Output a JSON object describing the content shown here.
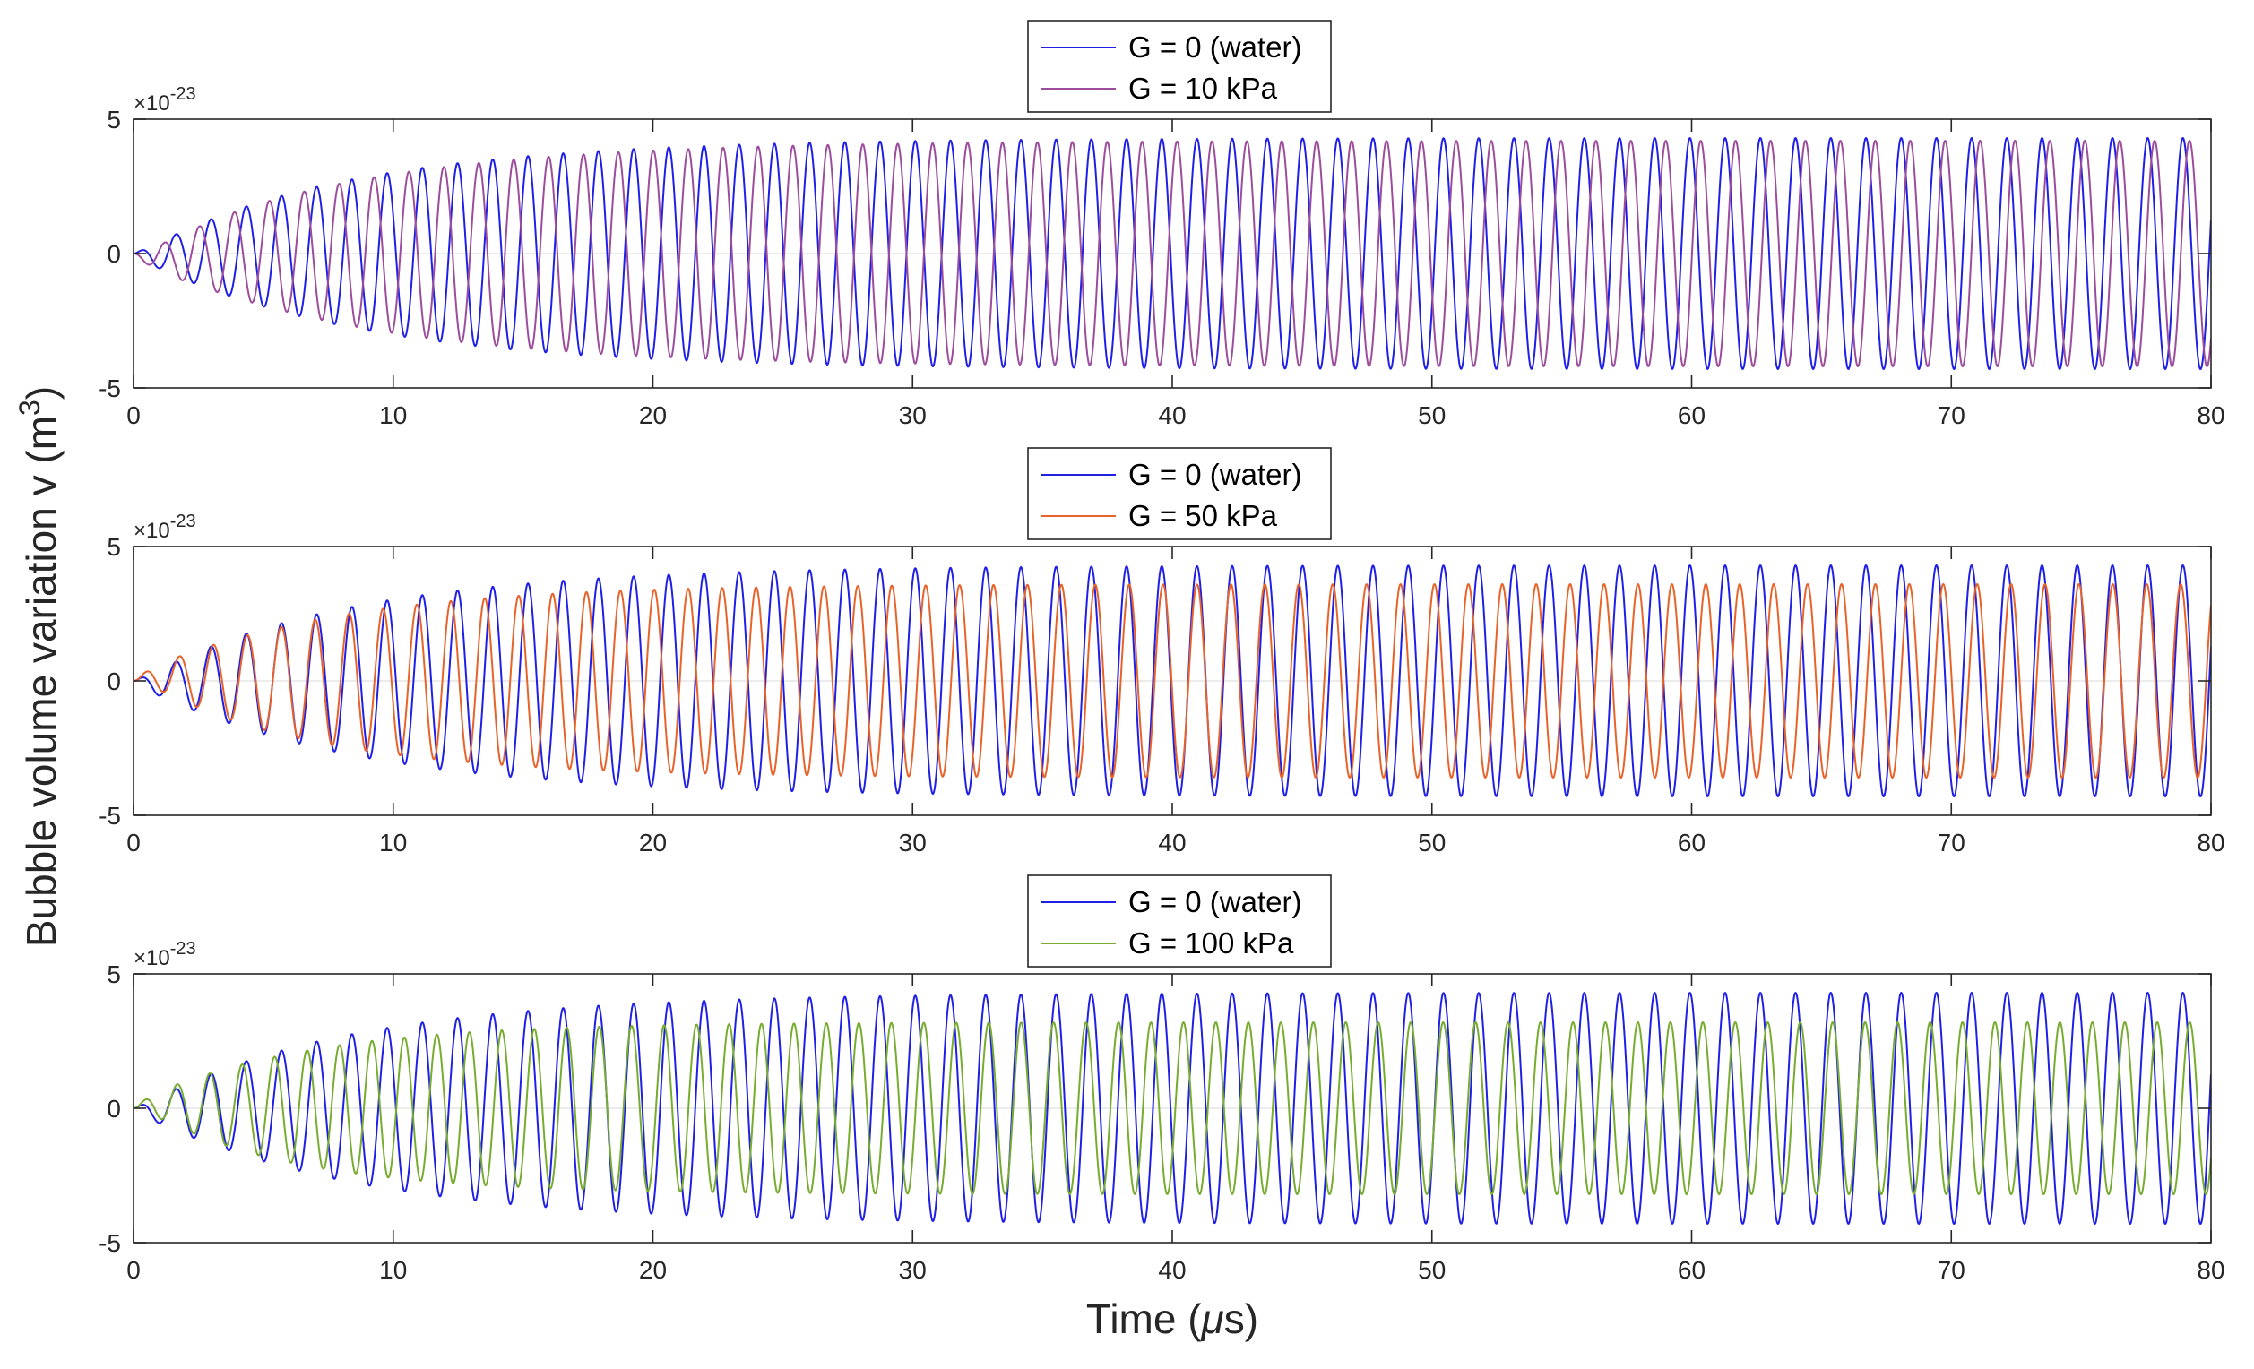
{
  "figure": {
    "ylabel": "Bubble volume variation v (m",
    "ylabel_sup": "3",
    "ylabel_tail": ")",
    "xlabel_pre": "Time (",
    "xlabel_mu": "μ",
    "xlabel_post": "s)"
  },
  "chart_data": [
    {
      "type": "line",
      "title": "",
      "xlabel": "Time (μs)",
      "ylabel": "Bubble volume variation v (m^3)",
      "xlim": [
        0,
        80
      ],
      "ylim": [
        -5,
        5
      ],
      "y_exponent": "×10^-23",
      "exponent_base": "×10",
      "exponent_power": "-23",
      "xticks": [
        "0",
        "10",
        "20",
        "30",
        "40",
        "50",
        "60",
        "70",
        "80"
      ],
      "yticks": [
        "-5",
        "0",
        "5"
      ],
      "legend_position": "top-center",
      "grid": false,
      "series": [
        {
          "name": "G = 0 (water)",
          "color": "#1f1fe6",
          "amplitude": 4.3,
          "frequency_per_us": 0.7375,
          "rise_time_us": 8.2,
          "phase_at_80us": 0.3
        },
        {
          "name": "G = 10 kPa",
          "color": "#9c4d9c",
          "amplitude": 4.2,
          "frequency_per_us": 0.7438,
          "rise_time_us": 8.2,
          "phase_at_80us": -0.85
        }
      ]
    },
    {
      "type": "line",
      "title": "",
      "xlabel": "Time (μs)",
      "ylabel": "Bubble volume variation v (m^3)",
      "xlim": [
        0,
        80
      ],
      "ylim": [
        -5,
        5
      ],
      "y_exponent": "×10^-23",
      "exponent_base": "×10",
      "exponent_power": "-23",
      "xticks": [
        "0",
        "10",
        "20",
        "30",
        "40",
        "50",
        "60",
        "70",
        "80"
      ],
      "yticks": [
        "-5",
        "0",
        "5"
      ],
      "legend_position": "top-center",
      "grid": false,
      "series": [
        {
          "name": "G = 0 (water)",
          "color": "#1f1fe6",
          "amplitude": 4.3,
          "frequency_per_us": 0.7375,
          "rise_time_us": 8.2,
          "phase_at_80us": 0.3
        },
        {
          "name": "G = 50 kPa",
          "color": "#e8632a",
          "amplitude": 3.6,
          "frequency_per_us": 0.7656,
          "rise_time_us": 7.0,
          "phase_at_80us": 0.9
        }
      ]
    },
    {
      "type": "line",
      "title": "",
      "xlabel": "Time (μs)",
      "ylabel": "Bubble volume variation v (m^3)",
      "xlim": [
        0,
        80
      ],
      "ylim": [
        -5,
        5
      ],
      "y_exponent": "×10^-23",
      "exponent_base": "×10",
      "exponent_power": "-23",
      "xticks": [
        "0",
        "10",
        "20",
        "30",
        "40",
        "50",
        "60",
        "70",
        "80"
      ],
      "yticks": [
        "-5",
        "0",
        "5"
      ],
      "legend_position": "top-center",
      "grid": false,
      "series": [
        {
          "name": "G = 0 (water)",
          "color": "#1f1fe6",
          "amplitude": 4.3,
          "frequency_per_us": 0.7375,
          "rise_time_us": 8.2,
          "phase_at_80us": 0.3
        },
        {
          "name": "G = 100 kPa",
          "color": "#77ac30",
          "amplitude": 3.2,
          "frequency_per_us": 0.8,
          "rise_time_us": 6.0,
          "phase_at_80us": -0.6
        }
      ]
    }
  ]
}
